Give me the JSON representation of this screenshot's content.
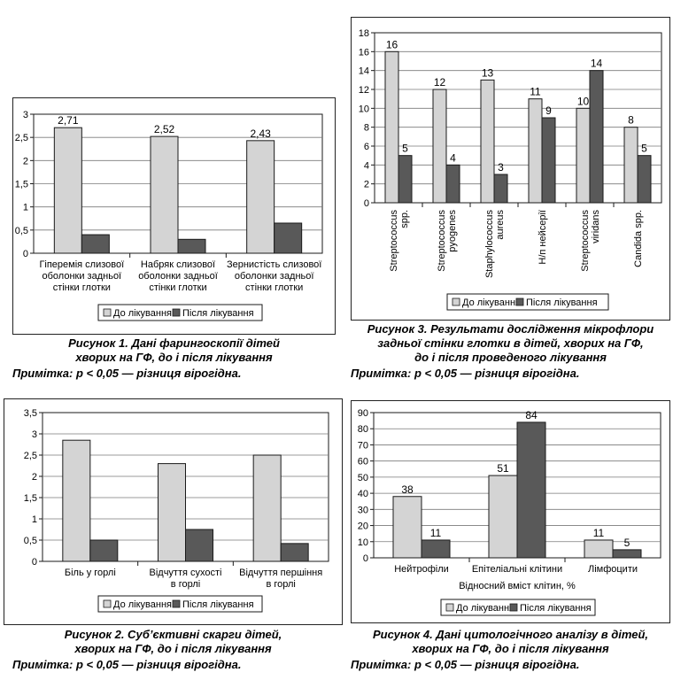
{
  "colors": {
    "before": "#d4d4d4",
    "after": "#595959",
    "stroke": "#1a1a1a",
    "grid": "#7a7a7a"
  },
  "legend": {
    "before": "До лікування",
    "after": "Після лікування"
  },
  "figures": [
    {
      "caption": "Рисунок 1. Дані фарингоскопії дітей\nхворих на ГФ, до і після лікування",
      "note_label": "Примітка:",
      "note_text": " р < 0,05 — різниця вірогідна."
    },
    {
      "caption": "Рисунок 2. Суб’єктивні скарги дітей,\nхворих на ГФ, до і після лікування",
      "note_label": "Примітка:",
      "note_text": " р < 0,05 — різниця вірогідна."
    },
    {
      "caption": "Рисунок 3. Результати дослідження мікрофлори\nзадньої стінки глотки в дітей, хворих на ГФ,\nдо і після проведеного лікування",
      "note_label": "Примітка:",
      "note_text": " р < 0,05 — різниця вірогідна."
    },
    {
      "caption": "Рисунок 4. Дані цитологічного аналізу в дітей,\nхворих на ГФ, до і після лікування",
      "note_label": "Примітка:",
      "note_text": " р < 0,05 — різниця вірогідна."
    }
  ],
  "chart_data": [
    {
      "type": "bar",
      "categories": [
        "Гіперемія слизової\nоболонки задньої\nстінки глотки",
        "Набряк слизової\nоболонки задньої\nстінки глотки",
        "Зернистість слизової\nоболонки задньої\nстінки глотки"
      ],
      "series": [
        {
          "name": "До лікування",
          "values": [
            2.71,
            2.52,
            2.43
          ],
          "labels": [
            "2,71",
            "2,52",
            "2,43"
          ]
        },
        {
          "name": "Після лікування",
          "values": [
            0.4,
            0.3,
            0.65
          ],
          "labels": []
        }
      ],
      "ylim": [
        0,
        3
      ],
      "yticks": [
        0,
        0.5,
        1,
        1.5,
        2,
        2.5,
        3
      ],
      "ytick_labels": [
        "0",
        "0,5",
        "1",
        "1,5",
        "2",
        "2,5",
        "3"
      ],
      "xlabel": "",
      "ylabel": "",
      "grid": true,
      "legend": "bottom"
    },
    {
      "type": "bar",
      "categories": [
        "Біль у горлі",
        "Відчуття сухості\nв горлі",
        "Відчуття першіння\nв горлі"
      ],
      "series": [
        {
          "name": "До лікування",
          "values": [
            2.85,
            2.3,
            2.5
          ],
          "labels": []
        },
        {
          "name": "Після лікування",
          "values": [
            0.5,
            0.75,
            0.42
          ],
          "labels": []
        }
      ],
      "ylim": [
        0,
        3.5
      ],
      "yticks": [
        0,
        0.5,
        1,
        1.5,
        2,
        2.5,
        3,
        3.5
      ],
      "ytick_labels": [
        "0",
        "0,5",
        "1",
        "1,5",
        "2",
        "2,5",
        "3",
        "3,5"
      ],
      "xlabel": "",
      "ylabel": "",
      "grid": true,
      "legend": "bottom"
    },
    {
      "type": "bar",
      "categories": [
        "Streptococcus\nspp.",
        "Streptococcus\npyogenes",
        "Staphylococcus\naureus",
        "Н/п нейсерії",
        "Streptococcus\nviridans",
        "Candida spp."
      ],
      "series": [
        {
          "name": "До лікування",
          "values": [
            16,
            12,
            13,
            11,
            10,
            8
          ],
          "labels": [
            "16",
            "12",
            "13",
            "11",
            "10",
            "8"
          ]
        },
        {
          "name": "Після лікування",
          "values": [
            5,
            4,
            3,
            9,
            14,
            5
          ],
          "labels": [
            "5",
            "4",
            "3",
            "9",
            "14",
            "5"
          ]
        }
      ],
      "ylim": [
        0,
        18
      ],
      "yticks": [
        0,
        2,
        4,
        6,
        8,
        10,
        12,
        14,
        16,
        18
      ],
      "ytick_labels": [
        "0",
        "2",
        "4",
        "6",
        "8",
        "10",
        "12",
        "14",
        "16",
        "18"
      ],
      "xlabel": "",
      "ylabel": "",
      "grid": true,
      "legend": "bottom"
    },
    {
      "type": "bar",
      "categories": [
        "Нейтрофіли",
        "Епітеліальні клітини",
        "Лімфоцити"
      ],
      "series": [
        {
          "name": "До лікування",
          "values": [
            38,
            51,
            11
          ],
          "labels": [
            "38",
            "51",
            "11"
          ]
        },
        {
          "name": "Після лікування",
          "values": [
            11,
            84,
            5
          ],
          "labels": [
            "11",
            "84",
            "5"
          ]
        }
      ],
      "ylim": [
        0,
        90
      ],
      "yticks": [
        0,
        10,
        20,
        30,
        40,
        50,
        60,
        70,
        80,
        90
      ],
      "ytick_labels": [
        "0",
        "10",
        "20",
        "30",
        "40",
        "50",
        "60",
        "70",
        "80",
        "90"
      ],
      "xlabel": "Відносний вміст клітин, %",
      "ylabel": "",
      "grid": true,
      "legend": "bottom"
    }
  ]
}
